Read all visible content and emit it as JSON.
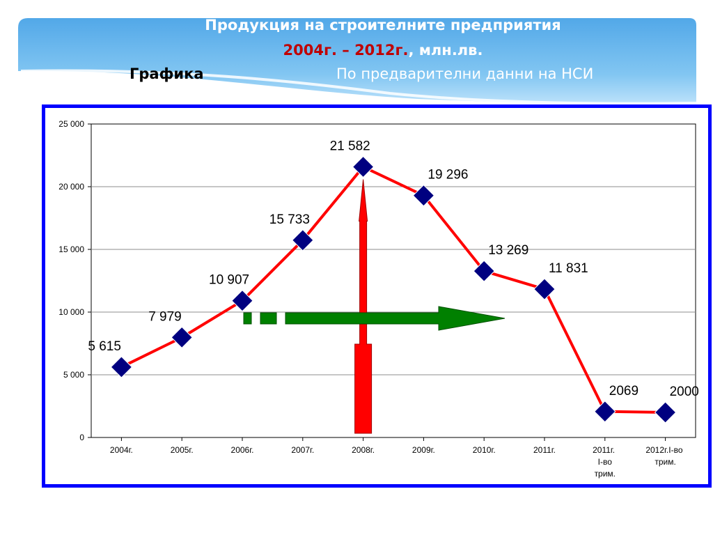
{
  "header": {
    "title": "Продукция на строителните предприятия",
    "period": "2004г. – 2012г.",
    "unit": ", млн.лв.",
    "section_label": "Графика",
    "source_note": "По предварителни данни на НСИ"
  },
  "chart_data": {
    "type": "line",
    "title": "",
    "xlabel": "",
    "ylabel": "",
    "ylim": [
      0,
      25000
    ],
    "yticks": [
      0,
      5000,
      10000,
      15000,
      20000,
      25000
    ],
    "ytick_labels": [
      "0",
      "5 000",
      "10 000",
      "15 000",
      "20 000",
      "25 000"
    ],
    "grid": true,
    "legend": "none",
    "categories": [
      "2004г.",
      "2005г.",
      "2006г.",
      "2007г.",
      "2008г.",
      "2009г.",
      "2010г.",
      "2011г.",
      "2011г. І-во трим.",
      "2012г.І-во трим."
    ],
    "series": [
      {
        "values": [
          5615,
          7979,
          10907,
          15733,
          21582,
          19296,
          13269,
          11831,
          2069,
          2000
        ],
        "data_labels": [
          "5 615",
          "7 979",
          "10 907",
          "15 733",
          "21 582",
          "19 296",
          "13 269",
          "11 831",
          "2069",
          "2000"
        ],
        "line_color": "#ff0000",
        "marker_color": "#000080",
        "marker": "diamond"
      }
    ],
    "annotations": [
      {
        "shape": "arrow-up",
        "color": "#ff0000",
        "at_category": "2008г."
      },
      {
        "shape": "dashed-arrow-right",
        "color": "#008000",
        "value": 9500
      }
    ]
  }
}
